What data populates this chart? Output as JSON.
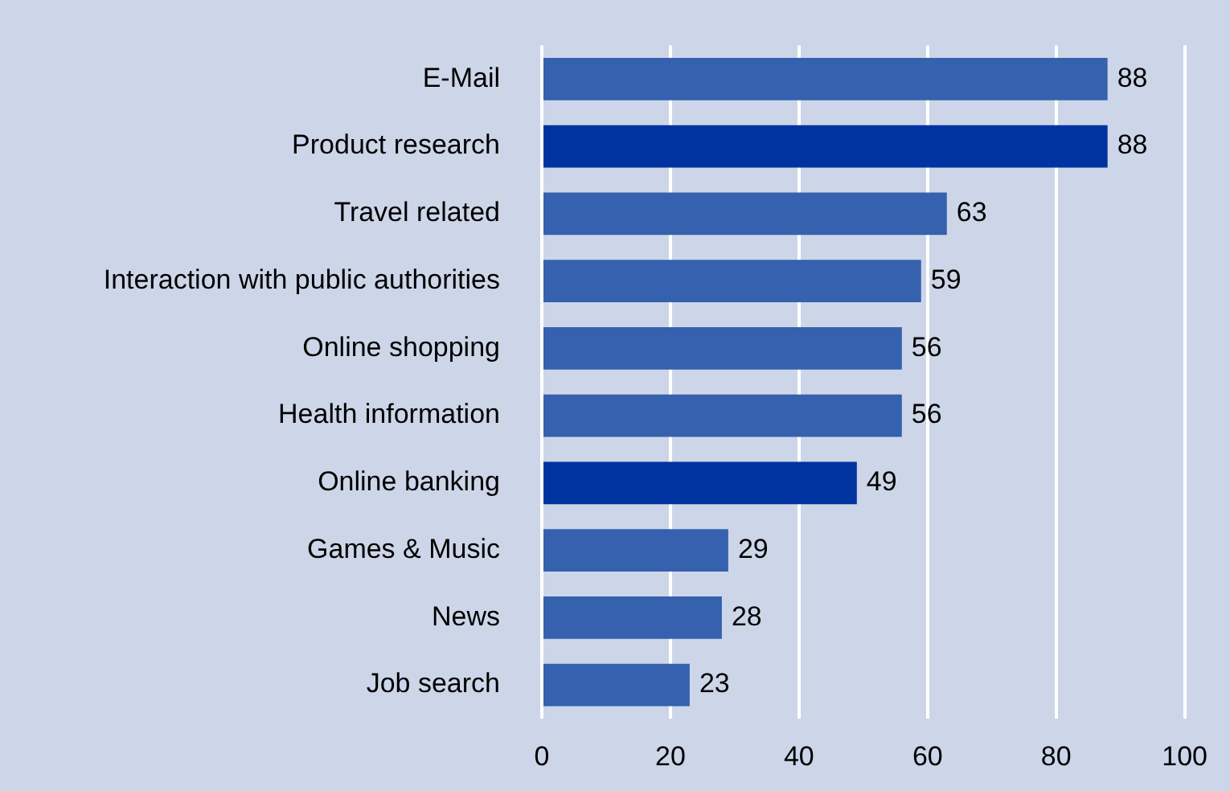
{
  "chart_data": {
    "type": "bar",
    "orientation": "horizontal",
    "categories": [
      "E-Mail",
      "Product research",
      "Travel related",
      "Interaction with public authorities",
      "Online shopping",
      "Health information",
      "Online banking",
      "Games & Music",
      "News",
      "Job search"
    ],
    "values": [
      88,
      88,
      63,
      59,
      56,
      56,
      49,
      29,
      28,
      23
    ],
    "colors": [
      "#3561ae",
      "#0033a0",
      "#3561ae",
      "#3561ae",
      "#3561ae",
      "#3561ae",
      "#0033a0",
      "#3561ae",
      "#3561ae",
      "#3561ae"
    ],
    "xlim": [
      0,
      100
    ],
    "xticks": [
      0,
      20,
      40,
      60,
      80,
      100
    ],
    "grid": "x",
    "data_labels": true,
    "legend": false
  }
}
